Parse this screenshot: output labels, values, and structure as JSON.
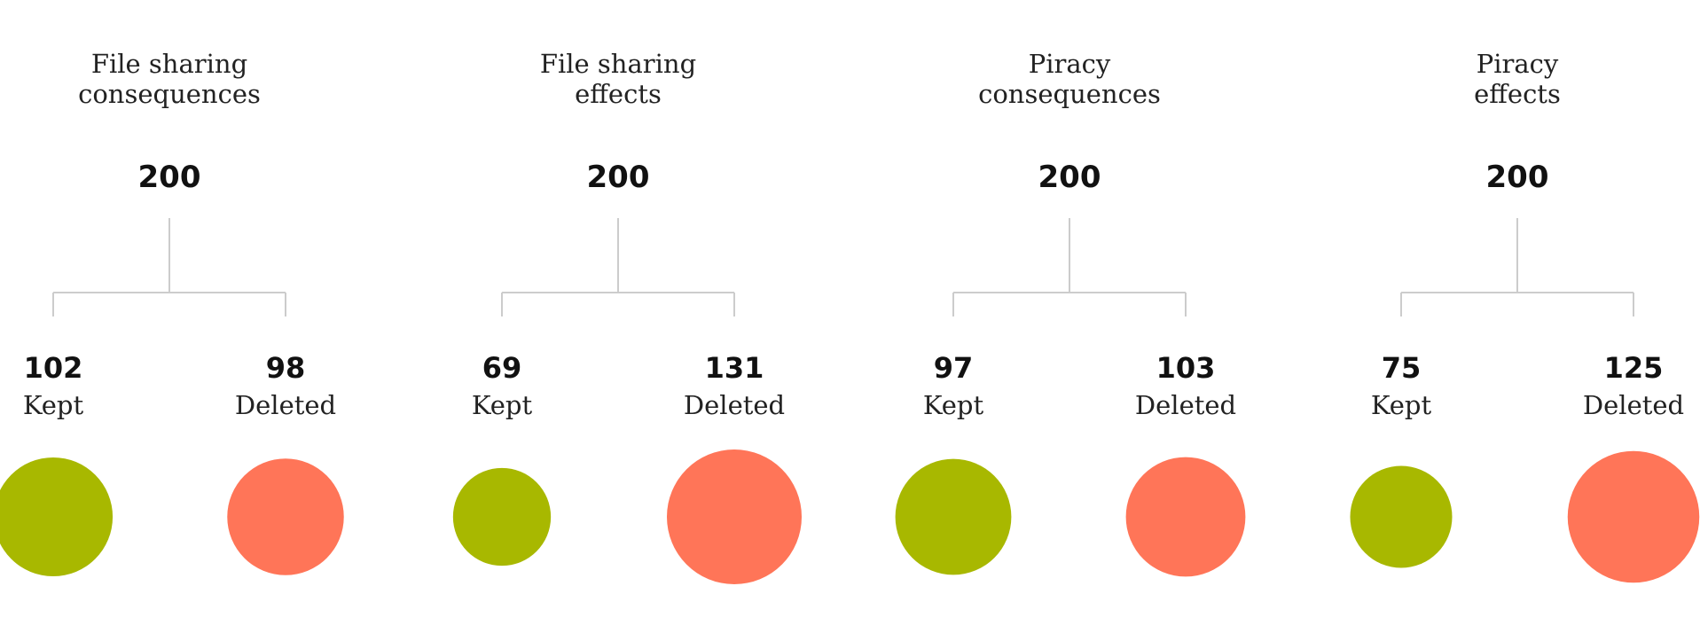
{
  "groups": [
    {
      "title": "File sharing\nconsequences",
      "total": "200",
      "kept": {
        "value": "102",
        "label": "Kept"
      },
      "deleted": {
        "value": "98",
        "label": "Deleted"
      }
    },
    {
      "title": "File sharing\neffects",
      "total": "200",
      "kept": {
        "value": "69",
        "label": "Kept"
      },
      "deleted": {
        "value": "131",
        "label": "Deleted"
      }
    },
    {
      "title": "Piracy\nconsequences",
      "total": "200",
      "kept": {
        "value": "97",
        "label": "Kept"
      },
      "deleted": {
        "value": "103",
        "label": "Deleted"
      }
    },
    {
      "title": "Piracy\neffects",
      "total": "200",
      "kept": {
        "value": "75",
        "label": "Kept"
      },
      "deleted": {
        "value": "125",
        "label": "Deleted"
      }
    }
  ],
  "colors": {
    "kept": "#a8b800",
    "deleted": "#ff7558",
    "connector": "#cccccc"
  }
}
